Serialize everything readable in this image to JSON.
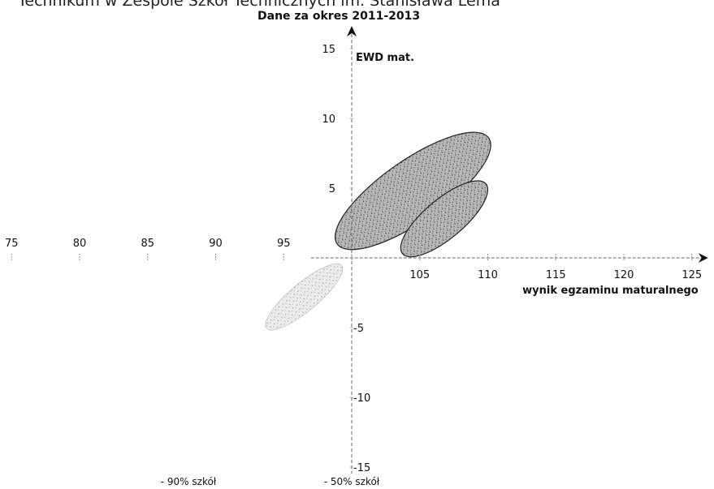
{
  "header": {
    "title_partial": "Technikum w Zespole Szkół Technicznych im. Stanisława Lema",
    "subtitle": "Dane za okres 2011-2013"
  },
  "chart_data": {
    "type": "scatter",
    "title": "Dane za okres 2011-2013",
    "xlabel": "wynik egzaminu maturalnego",
    "ylabel": "EWD mat.",
    "xlim": [
      75,
      125
    ],
    "ylim": [
      -15,
      15
    ],
    "x_ticks": [
      75,
      80,
      85,
      90,
      95,
      100,
      105,
      110,
      115,
      120,
      125
    ],
    "x_tick_labels": [
      "75",
      "80",
      "85",
      "90",
      "95",
      "",
      "105",
      "110",
      "115",
      "120",
      "125"
    ],
    "y_ticks": [
      15,
      10,
      5,
      -5,
      -10,
      -15
    ],
    "y_tick_labels": [
      "15",
      "10",
      "5",
      "-5",
      "-10",
      "-15"
    ],
    "grid": false,
    "ellipses": [
      {
        "cx": 104.5,
        "cy": 4.8,
        "rx": 6.8,
        "ry": 2.2,
        "angle_deg": 35,
        "fill": "#9a9a9a",
        "stroke": "#222222",
        "style": "dense"
      },
      {
        "cx": 106.8,
        "cy": 2.8,
        "rx": 4.0,
        "ry": 1.4,
        "angle_deg": 40,
        "fill": "#8a8a8a",
        "stroke": "#222222",
        "style": "dense"
      },
      {
        "cx": 96.5,
        "cy": -2.8,
        "rx": 3.6,
        "ry": 1.0,
        "angle_deg": 40,
        "fill": "#d2d2d2",
        "stroke": "#bbbbbb",
        "style": "light"
      }
    ],
    "legend": {
      "placement": "bottom",
      "items": [
        "- 90% szkół",
        "- 50% szkół"
      ]
    }
  }
}
